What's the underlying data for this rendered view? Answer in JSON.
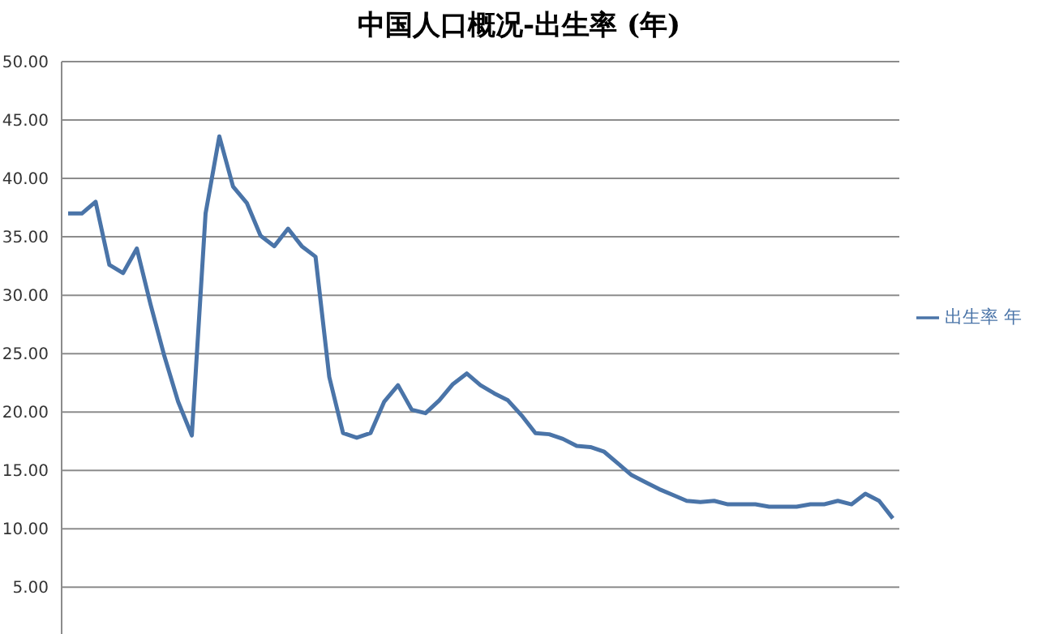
{
  "chart_data": {
    "type": "line",
    "title": "中国人口概况-出生率 (年)",
    "categories": [
      null,
      null,
      null,
      null,
      null,
      null,
      null,
      null,
      null,
      null,
      null,
      null,
      null,
      null,
      null,
      null,
      null,
      null,
      null,
      null,
      null,
      null,
      null,
      null,
      null,
      null,
      null,
      null,
      null,
      null,
      null,
      null,
      null,
      null,
      null,
      null,
      null,
      null,
      null,
      null,
      null,
      null,
      null,
      null,
      null,
      null,
      null,
      null,
      null,
      null,
      null,
      null,
      null,
      null,
      null,
      null,
      null,
      null,
      null,
      null,
      null
    ],
    "series": [
      {
        "name": "出生率 年",
        "color": "#4a74a8",
        "values": [
          37,
          37,
          38,
          32.6,
          31.9,
          34,
          29.2,
          24.8,
          20.9,
          18,
          37,
          43.6,
          39.3,
          37.9,
          35.1,
          34.2,
          35.7,
          34.2,
          33.3,
          23,
          18.2,
          17.8,
          18.2,
          20.9,
          22.3,
          20.2,
          19.9,
          21,
          22.4,
          23.3,
          22.3,
          21.6,
          21,
          19.7,
          18.2,
          18.1,
          17.7,
          17.1,
          17,
          16.6,
          15.6,
          14.6,
          14,
          13.4,
          12.9,
          12.4,
          12.3,
          12.4,
          12.1,
          12.1,
          12.1,
          11.9,
          11.9,
          11.9,
          12.1,
          12.1,
          12.4,
          12.1,
          13,
          12.4,
          10.9
        ]
      }
    ],
    "ylim": [
      1,
      50
    ],
    "yticks": [
      {
        "value": 5,
        "label": "5.00"
      },
      {
        "value": 10,
        "label": "10.00"
      },
      {
        "value": 15,
        "label": "15.00"
      },
      {
        "value": 20,
        "label": "20.00"
      },
      {
        "value": 25,
        "label": "25.00"
      },
      {
        "value": 30,
        "label": "30.00"
      },
      {
        "value": 35,
        "label": "35.00"
      },
      {
        "value": 40,
        "label": "40.00"
      },
      {
        "value": 45,
        "label": "45.00"
      },
      {
        "value": 50,
        "label": "50.00"
      }
    ],
    "tick_labels": "y",
    "grid": "y",
    "legend": "right",
    "marker": "none",
    "line_style": "solid"
  }
}
